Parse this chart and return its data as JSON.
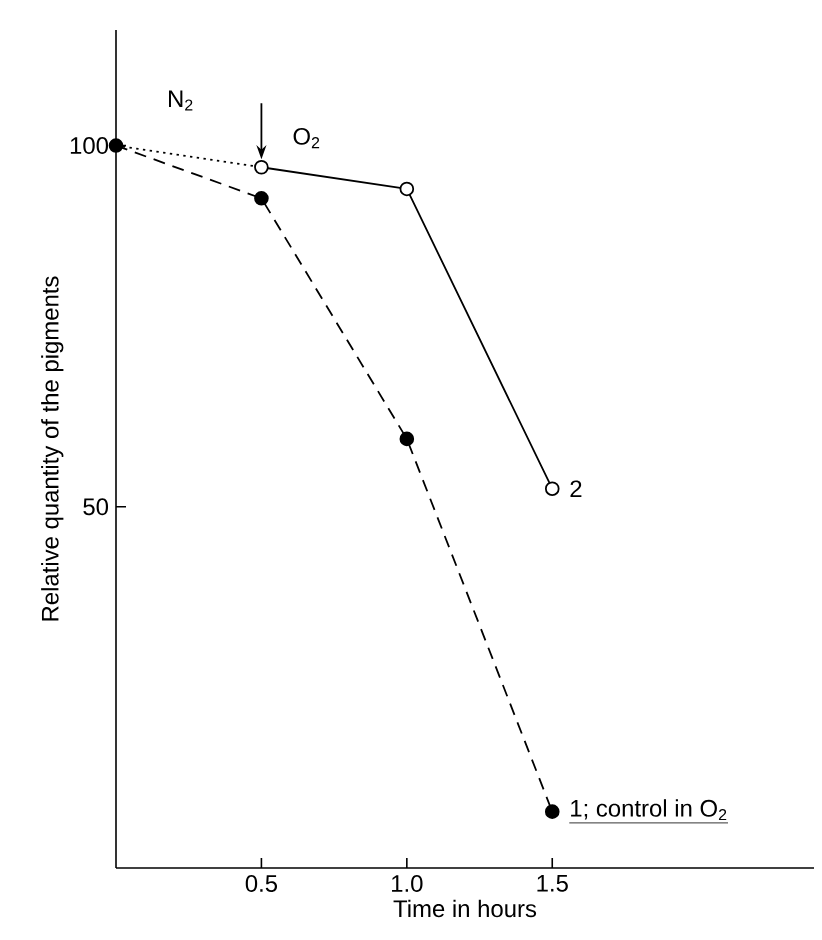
{
  "chart_data": {
    "type": "line",
    "xlabel": "Time in hours",
    "ylabel": "Relative quantity of the pigments",
    "xlim": [
      0,
      2.4
    ],
    "ylim": [
      0,
      116
    ],
    "xticks": [
      0.5,
      {
        "value": 1,
        "label": "1.0"
      },
      1.5
    ],
    "yticks": [
      50,
      100
    ],
    "series": [
      {
        "name": "2",
        "x": [
          0.5,
          1,
          1.5
        ],
        "values": [
          97,
          94,
          52.5
        ],
        "color": "#000000",
        "line_style": "solid",
        "marker": "circle"
      },
      {
        "name": "1; control in O$_{2}$",
        "x": [
          0,
          0.5,
          1,
          1.5
        ],
        "values": [
          100,
          92.7,
          59.4,
          7.8
        ],
        "color": "#000000",
        "line_style": "dashed",
        "marker": "circle"
      },
      {
        "x": [
          0,
          0.5
        ],
        "values": [
          100,
          97
        ],
        "color": "#000000",
        "line_style": "dotted",
        "marker": "none"
      }
    ],
    "annotations": [
      "N$_{2}$",
      "O$_{2}$"
    ]
  }
}
